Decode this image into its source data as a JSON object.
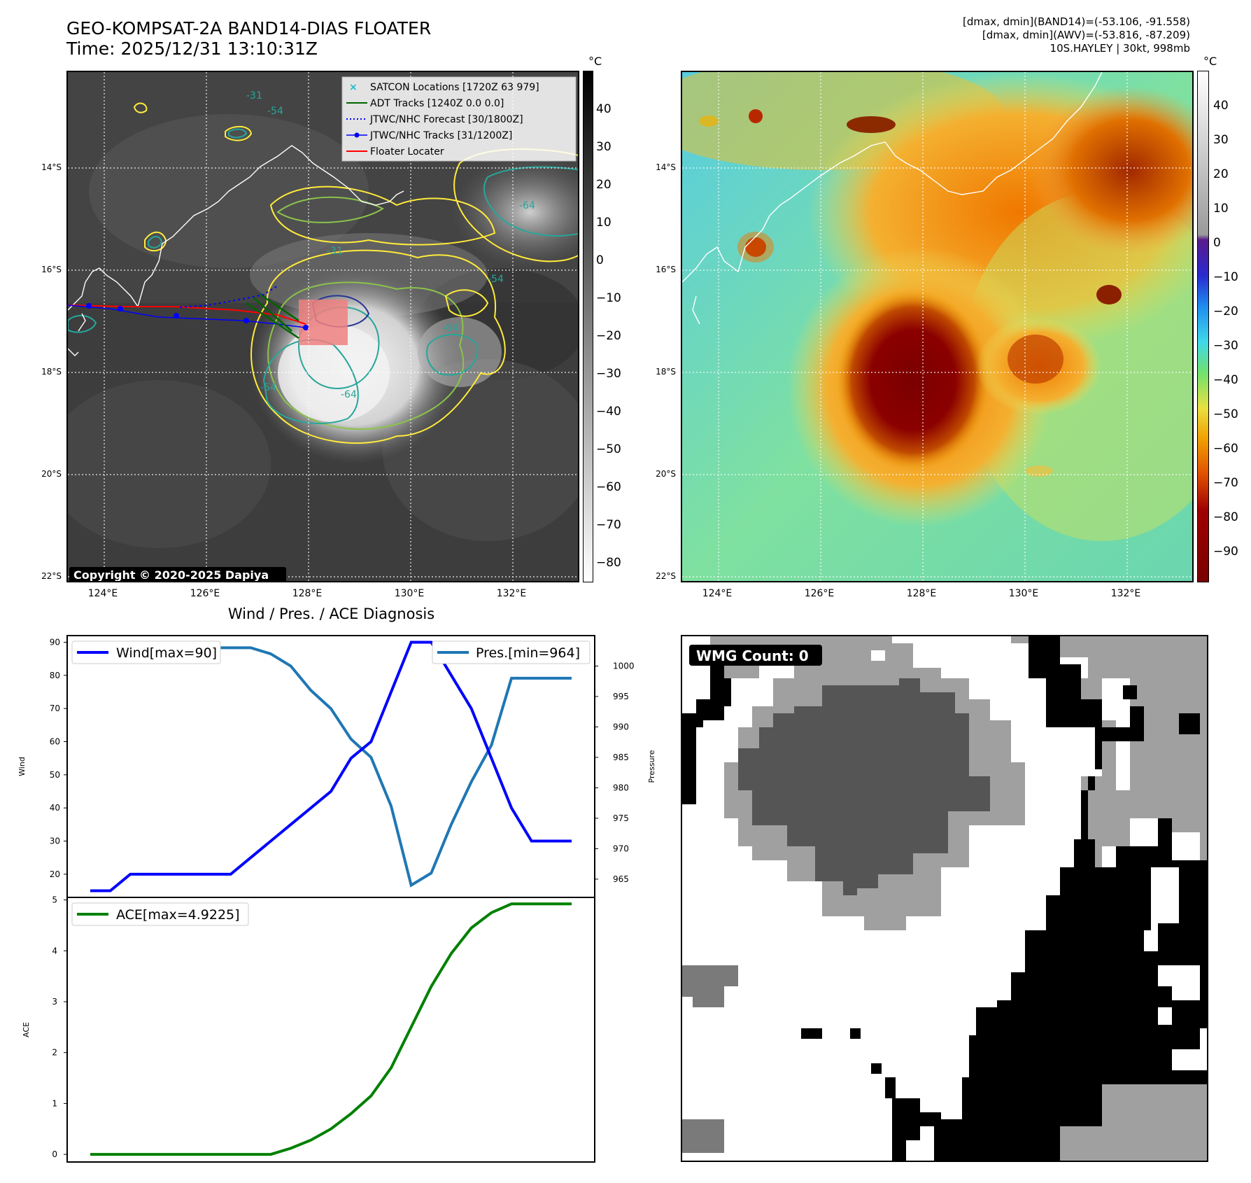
{
  "header": {
    "title_line1": "GEO-KOMPSAT-2A BAND14-DIAS FLOATER",
    "title_line2": "Time: 2025/12/31 13:10:31Z",
    "right_line1": "[dmax, dmin](BAND14)=(-53.106, -91.558)",
    "right_line2": "[dmax, dmin](AWV)=(-53.816, -87.209)",
    "right_line3": "10S.HAYLEY | 30kt, 998mb"
  },
  "map": {
    "lat_labels": [
      "14°S",
      "16°S",
      "18°S",
      "20°S",
      "22°S"
    ],
    "lon_labels": [
      "124°E",
      "126°E",
      "128°E",
      "130°E",
      "132°E"
    ],
    "copyright": "Copyright © 2020-2025 Dapiya",
    "contour_labels": [
      "-31",
      "-54",
      "-64",
      "-31",
      "-54",
      "-64",
      "-54",
      "-64"
    ],
    "legend": [
      {
        "label": "SATCON Locations [1720Z 63 979]",
        "color": "#17becf"
      },
      {
        "label": "ADT Tracks [1240Z 0.0 0.0]",
        "color": "#006400"
      },
      {
        "label": "JTWC/NHC Forecast [30/1800Z]",
        "color": "#0000ff"
      },
      {
        "label": "JTWC/NHC Tracks [31/1200Z]",
        "color": "#0000ff"
      },
      {
        "label": "Floater Locater",
        "color": "#ff0000"
      }
    ]
  },
  "colorbars": {
    "unit": "°C",
    "gray_ticks": [
      "40",
      "30",
      "20",
      "10",
      "0",
      "−10",
      "−20",
      "−30",
      "−40",
      "−50",
      "−60",
      "−70",
      "−80"
    ],
    "color_ticks": [
      "40",
      "30",
      "20",
      "10",
      "0",
      "−10",
      "−20",
      "−30",
      "−40",
      "−50",
      "−60",
      "−70",
      "−80",
      "−90"
    ]
  },
  "diagnosis_title": "Wind / Pres. / ACE Diagnosis",
  "wmg_label": "WMG Count: 0",
  "colors": {
    "wind": "#0000ff",
    "pres": "#1f77b4",
    "ace": "#008000",
    "track": "#ff0000",
    "floater_box": "#f08080"
  },
  "chart_data": [
    {
      "type": "line",
      "title": "Wind / Pres. / ACE Diagnosis",
      "ylabel": "Wind",
      "y2label": "Pressure",
      "ylim": [
        13,
        92
      ],
      "y2lim": [
        962,
        1005
      ],
      "yticks": [
        20,
        30,
        40,
        50,
        60,
        70,
        80,
        90
      ],
      "y2ticks": [
        965,
        970,
        975,
        980,
        985,
        990,
        995,
        1000
      ],
      "x": [
        0,
        1,
        2,
        3,
        4,
        5,
        6,
        7,
        8,
        9,
        10,
        11,
        12,
        13,
        14,
        15,
        16,
        17,
        18,
        19,
        20,
        21,
        22,
        23,
        24
      ],
      "series": [
        {
          "name": "Wind[max=90]",
          "axis": "left",
          "values": [
            15,
            15,
            20,
            20,
            20,
            20,
            20,
            20,
            25,
            30,
            35,
            40,
            45,
            55,
            60,
            75,
            90,
            90,
            80,
            70,
            55,
            40,
            30,
            30,
            30
          ]
        },
        {
          "name": "Pres.[min=964]",
          "axis": "right",
          "values": [
            1003,
            1003,
            1003,
            1003,
            1003,
            1003,
            1003,
            1003,
            1003,
            1002,
            1000,
            996,
            993,
            988,
            985,
            977,
            964,
            966,
            974,
            981,
            987,
            998,
            998,
            998,
            998
          ]
        }
      ]
    },
    {
      "type": "line",
      "ylabel": "ACE",
      "ylim": [
        -0.15,
        5.05
      ],
      "yticks": [
        0,
        1,
        2,
        3,
        4,
        5
      ],
      "x": [
        0,
        1,
        2,
        3,
        4,
        5,
        6,
        7,
        8,
        9,
        10,
        11,
        12,
        13,
        14,
        15,
        16,
        17,
        18,
        19,
        20,
        21,
        22,
        23,
        24
      ],
      "series": [
        {
          "name": "ACE[max=4.9225]",
          "values": [
            0,
            0,
            0,
            0,
            0,
            0,
            0,
            0,
            0,
            0,
            0.12,
            0.28,
            0.5,
            0.8,
            1.15,
            1.7,
            2.5,
            3.3,
            3.95,
            4.45,
            4.75,
            4.9225,
            4.9225,
            4.9225,
            4.9225
          ]
        }
      ]
    }
  ]
}
